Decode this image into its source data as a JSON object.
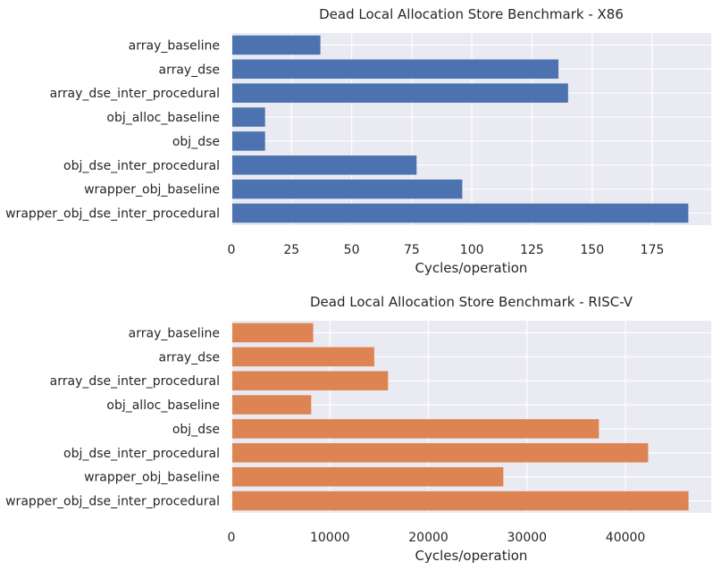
{
  "chart_data": [
    {
      "type": "bar",
      "orientation": "horizontal",
      "title": "Dead Local Allocation Store Benchmark - X86",
      "xlabel": "Cycles/operation",
      "ylabel": "",
      "categories": [
        "array_baseline",
        "array_dse",
        "array_dse_inter_procedural",
        "obj_alloc_baseline",
        "obj_dse",
        "obj_dse_inter_procedural",
        "wrapper_obj_baseline",
        "wrapper_obj_dse_inter_procedural"
      ],
      "values": [
        37,
        136,
        140,
        14,
        14,
        77,
        96,
        190
      ],
      "xlim": [
        0,
        199.5
      ],
      "xticks": [
        0,
        25,
        50,
        75,
        100,
        125,
        150,
        175
      ],
      "xtick_labels": [
        "0",
        "25",
        "50",
        "75",
        "100",
        "125",
        "150",
        "175"
      ],
      "grid": true,
      "color": "#4c72b0",
      "background": "#eaeaf2"
    },
    {
      "type": "bar",
      "orientation": "horizontal",
      "title": "Dead Local Allocation Store Benchmark - RISC-V",
      "xlabel": "Cycles/operation",
      "ylabel": "",
      "categories": [
        "array_baseline",
        "array_dse",
        "array_dse_inter_procedural",
        "obj_alloc_baseline",
        "obj_dse",
        "obj_dse_inter_procedural",
        "wrapper_obj_baseline",
        "wrapper_obj_dse_inter_procedural"
      ],
      "values": [
        8300,
        14500,
        15900,
        8100,
        37300,
        42300,
        27600,
        46400
      ],
      "xlim": [
        0,
        48700
      ],
      "xticks": [
        0,
        10000,
        20000,
        30000,
        40000
      ],
      "xtick_labels": [
        "0",
        "10000",
        "20000",
        "30000",
        "40000"
      ],
      "grid": true,
      "color": "#dd8452",
      "background": "#eaeaf2"
    }
  ]
}
